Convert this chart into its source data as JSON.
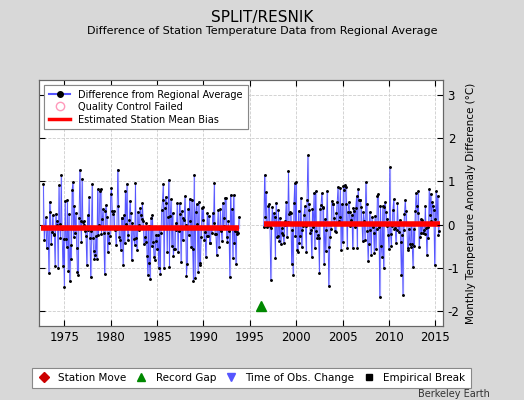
{
  "title": "SPLIT/RESNIK",
  "subtitle": "Difference of Station Temperature Data from Regional Average",
  "ylabel": "Monthly Temperature Anomaly Difference (°C)",
  "xlabel_ticks": [
    1975,
    1980,
    1985,
    1990,
    1995,
    2000,
    2005,
    2010,
    2015
  ],
  "yticks": [
    -2,
    -1,
    0,
    1,
    2,
    3
  ],
  "ylim": [
    -2.35,
    3.35
  ],
  "xlim": [
    1972.3,
    2015.8
  ],
  "record_gap_x": 1996.25,
  "record_gap_y": -1.88,
  "bias1": -0.08,
  "bias2": 0.02,
  "segment1_start": 1972.5,
  "segment1_end": 1993.8,
  "segment2_start": 1996.5,
  "segment2_end": 2015.5,
  "blue_line_color": "#5555ff",
  "blue_fill_color": "#aaaaff",
  "red_color": "#ff0000",
  "green_color": "#008800",
  "pink_color": "#ff99bb",
  "bg_color": "#d8d8d8",
  "plot_bg_color": "#ffffff",
  "footer": "Berkeley Earth",
  "seed1": 7,
  "seed2": 99,
  "std1": 0.6,
  "std2": 0.55
}
